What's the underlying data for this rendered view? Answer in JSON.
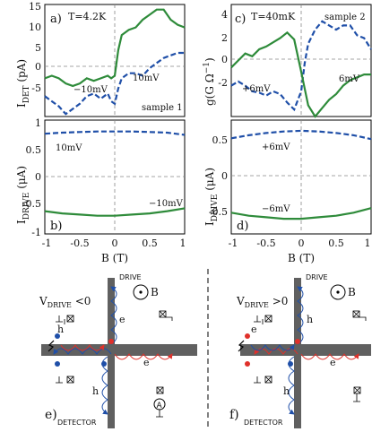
{
  "panels": {
    "a": {
      "label": "a)",
      "temp": "T=4.2K",
      "sample": "sample 1",
      "ylabel": "I",
      "ysub": "DET",
      "yunit": " (pA)",
      "yticks": [
        "15",
        "10",
        "5",
        "0",
        "-5"
      ],
      "series_labels": [
        "−10mV",
        "10mV"
      ]
    },
    "c": {
      "label": "c)",
      "temp": "T=40mK",
      "sample": "sample 2",
      "ylabel": "g(G Ω",
      "ysup": "−1",
      "yunit": ")",
      "yticks": [
        "4",
        "2",
        "0",
        "-2"
      ],
      "series_labels": [
        "+6mV",
        "6mV"
      ]
    },
    "b": {
      "label": "b)",
      "ylabel": "I",
      "ysub": "DRIVE",
      "yunit": " (μA)",
      "yticks": [
        "1",
        "0.5",
        "0",
        "-0.5",
        "-1"
      ],
      "series_labels": [
        "10mV",
        "−10mV"
      ]
    },
    "d": {
      "label": "d)",
      "ylabel": "I",
      "ysub": "DRIVE",
      "yunit": " (μA)",
      "yticks": [
        "0.5",
        "0",
        "-0.5"
      ],
      "series_labels": [
        "+6mV",
        "−6mV"
      ]
    }
  },
  "xaxis": {
    "label": "B (T)",
    "ticks": [
      "-1",
      "-0.5",
      "0",
      "0.5",
      "1"
    ]
  },
  "schematics": {
    "e": {
      "label": "e)",
      "drive": "DRIVE",
      "detector": "DETECTOR",
      "v": "V",
      "vsub": "DRIVE",
      "vcond": " <0",
      "field": "B",
      "carriers": [
        "h",
        "e",
        "h",
        "e"
      ],
      "ammeter": "A"
    },
    "f": {
      "label": "f)",
      "drive": "DRIVE",
      "detector": "DETECTOR",
      "v": "V",
      "vsub": "DRIVE",
      "vcond": " >0",
      "field": "B",
      "carriers": [
        "h",
        "e",
        "e",
        "h"
      ]
    }
  },
  "colors": {
    "green": "#2e8b3a",
    "blue": "#1f4fa8",
    "red": "#e0302a",
    "bar": "#606060"
  },
  "chart_data": [
    {
      "type": "line",
      "panel": "a",
      "xlabel": "B (T)",
      "ylabel": "I_DET (pA)",
      "xlim": [
        -1,
        1
      ],
      "ylim": [
        -7,
        15
      ],
      "series": [
        {
          "name": "−10mV",
          "color": "green",
          "style": "solid",
          "x": [
            -1,
            -0.9,
            -0.8,
            -0.7,
            -0.6,
            -0.5,
            -0.4,
            -0.3,
            -0.2,
            -0.1,
            -0.05,
            0,
            0.05,
            0.1,
            0.2,
            0.3,
            0.4,
            0.5,
            0.6,
            0.7,
            0.8,
            0.9,
            1
          ],
          "y": [
            0.5,
            1,
            0.5,
            -0.5,
            -1,
            -0.5,
            0.5,
            0,
            0.5,
            1,
            0.5,
            1,
            6,
            9,
            10,
            10.5,
            12,
            13,
            14,
            14,
            12,
            11,
            10.5
          ]
        },
        {
          "name": "10mV",
          "color": "blue",
          "style": "dashed",
          "x": [
            -1,
            -0.9,
            -0.8,
            -0.7,
            -0.6,
            -0.5,
            -0.4,
            -0.3,
            -0.2,
            -0.1,
            -0.05,
            0,
            0.05,
            0.1,
            0.2,
            0.3,
            0.4,
            0.5,
            0.6,
            0.7,
            0.8,
            0.9,
            1
          ],
          "y": [
            -3,
            -4,
            -5,
            -6.5,
            -5.5,
            -4.5,
            -3,
            -2.5,
            -3.5,
            -2.5,
            -4,
            -4.5,
            -1.5,
            0.5,
            1.5,
            1.5,
            1,
            2.5,
            3.5,
            4.5,
            5,
            5.5,
            5.5
          ]
        }
      ]
    },
    {
      "type": "line",
      "panel": "c",
      "xlabel": "",
      "ylabel": "g(G Ω⁻¹)",
      "xlim": [
        -1,
        1
      ],
      "ylim": [
        -3,
        5
      ],
      "series": [
        {
          "name": "+6mV",
          "color": "blue",
          "style": "dashed",
          "x": [
            -1,
            -0.9,
            -0.8,
            -0.7,
            -0.6,
            -0.5,
            -0.4,
            -0.3,
            -0.2,
            -0.1,
            0,
            0.05,
            0.1,
            0.2,
            0.3,
            0.4,
            0.5,
            0.6,
            0.7,
            0.8,
            0.9,
            1
          ],
          "y": [
            -0.8,
            -0.5,
            -0.8,
            -1.2,
            -1.3,
            -1.5,
            -1.2,
            -1.4,
            -2,
            -2.5,
            -1.2,
            0.8,
            2.2,
            3.2,
            3.8,
            3.5,
            3.2,
            3.5,
            3.5,
            2.8,
            2.6,
            1.8
          ]
        },
        {
          "name": "6mV",
          "color": "green",
          "style": "solid",
          "x": [
            -1,
            -0.9,
            -0.8,
            -0.7,
            -0.6,
            -0.5,
            -0.4,
            -0.3,
            -0.2,
            -0.1,
            0,
            0.05,
            0.1,
            0.2,
            0.3,
            0.4,
            0.5,
            0.6,
            0.7,
            0.8,
            0.9,
            1
          ],
          "y": [
            0.5,
            1,
            1.5,
            1.3,
            1.8,
            2,
            2.3,
            2.6,
            3,
            2.5,
            0.2,
            -1,
            -2.2,
            -3,
            -2.4,
            -1.8,
            -1.4,
            -0.8,
            -0.4,
            -0.2,
            0,
            0
          ]
        }
      ]
    },
    {
      "type": "line",
      "panel": "b",
      "xlabel": "B (T)",
      "ylabel": "I_DRIVE (μA)",
      "xlim": [
        -1,
        1
      ],
      "ylim": [
        -1,
        1
      ],
      "series": [
        {
          "name": "10mV",
          "color": "blue",
          "style": "dashed",
          "x": [
            -1,
            -0.75,
            -0.5,
            -0.25,
            0,
            0.25,
            0.5,
            0.75,
            1
          ],
          "y": [
            0.76,
            0.78,
            0.79,
            0.8,
            0.8,
            0.8,
            0.79,
            0.78,
            0.74
          ]
        },
        {
          "name": "−10mV",
          "color": "green",
          "style": "solid",
          "x": [
            -1,
            -0.75,
            -0.5,
            -0.25,
            0,
            0.25,
            0.5,
            0.75,
            1
          ],
          "y": [
            -0.6,
            -0.64,
            -0.66,
            -0.68,
            -0.68,
            -0.66,
            -0.64,
            -0.6,
            -0.55
          ]
        }
      ]
    },
    {
      "type": "line",
      "panel": "d",
      "xlabel": "B (T)",
      "ylabel": "I_DRIVE (μA)",
      "xlim": [
        -1,
        1
      ],
      "ylim": [
        -0.8,
        0.7
      ],
      "series": [
        {
          "name": "+6mV",
          "color": "blue",
          "style": "dashed",
          "x": [
            -1,
            -0.75,
            -0.5,
            -0.25,
            0,
            0.25,
            0.5,
            0.75,
            1
          ],
          "y": [
            0.46,
            0.5,
            0.53,
            0.55,
            0.56,
            0.55,
            0.53,
            0.5,
            0.45
          ]
        },
        {
          "name": "−6mV",
          "color": "green",
          "style": "solid",
          "x": [
            -1,
            -0.75,
            -0.5,
            -0.25,
            0,
            0.25,
            0.5,
            0.75,
            1
          ],
          "y": [
            -0.52,
            -0.56,
            -0.58,
            -0.6,
            -0.6,
            -0.58,
            -0.56,
            -0.52,
            -0.46
          ]
        }
      ]
    }
  ]
}
